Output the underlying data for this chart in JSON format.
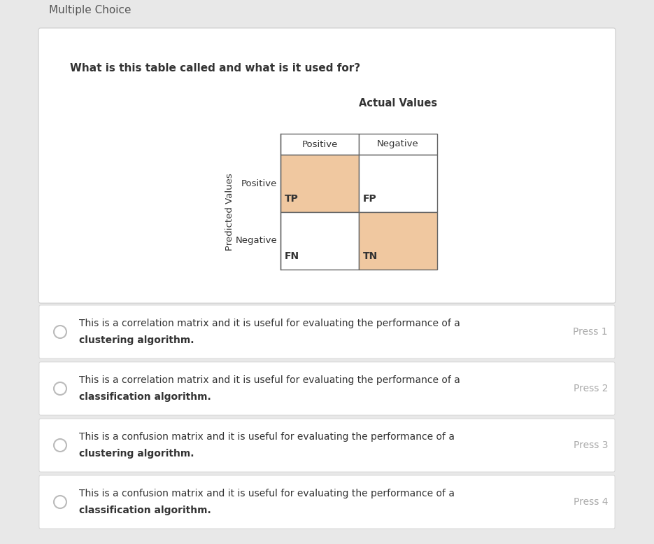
{
  "bg_outer": "#e8e8e8",
  "bg_white": "#ffffff",
  "header_text": "Multiple Choice",
  "question": "What is this table called and what is it used for?",
  "actual_values_label": "Actual Values",
  "predicted_values_label": "Predicted Values",
  "col_headers": [
    "Positive",
    "Negative"
  ],
  "row_headers": [
    "Positive",
    "Negative"
  ],
  "cell_values": [
    [
      "TP",
      "FP"
    ],
    [
      "FN",
      "TN"
    ]
  ],
  "highlight_color": "#f0c8a0",
  "white_color": "#ffffff",
  "cell_highlights": [
    [
      true,
      false
    ],
    [
      false,
      true
    ]
  ],
  "options": [
    {
      "text1": "This is a correlation matrix and it is useful for evaluating the performance of a",
      "text2": "clustering algorithm.",
      "press": "Press 1"
    },
    {
      "text1": "This is a correlation matrix and it is useful for evaluating the performance of a",
      "text2": "classification algorithm.",
      "press": "Press 2"
    },
    {
      "text1": "This is a confusion matrix and it is useful for evaluating the performance of a",
      "text2": "clustering algorithm.",
      "press": "Press 3"
    },
    {
      "text1": "This is a confusion matrix and it is useful for evaluating the performance of a",
      "text2": "classification algorithm.",
      "press": "Press 4"
    }
  ],
  "border_color": "#cccccc",
  "text_color": "#333333",
  "press_color": "#aaaaaa",
  "cell_border": "#666666",
  "header_color": "#555555"
}
